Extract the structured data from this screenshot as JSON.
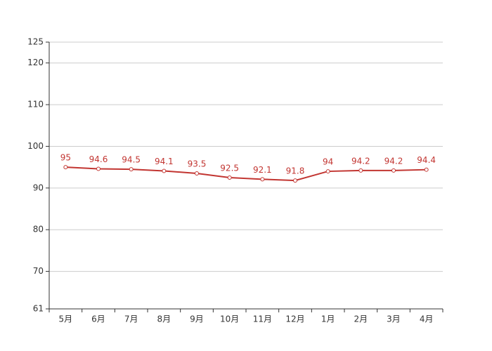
{
  "chart_data": {
    "type": "line",
    "categories": [
      "5月",
      "6月",
      "7月",
      "8月",
      "9月",
      "10月",
      "11月",
      "12月",
      "1月",
      "2月",
      "3月",
      "4月"
    ],
    "values": [
      95,
      94.6,
      94.5,
      94.1,
      93.5,
      92.5,
      92.1,
      91.8,
      94,
      94.2,
      94.2,
      94.4
    ],
    "color": "#c23531",
    "ylim": [
      61,
      125
    ],
    "yticks": [
      61,
      70,
      80,
      90,
      100,
      110,
      120,
      125
    ],
    "grid": true
  }
}
